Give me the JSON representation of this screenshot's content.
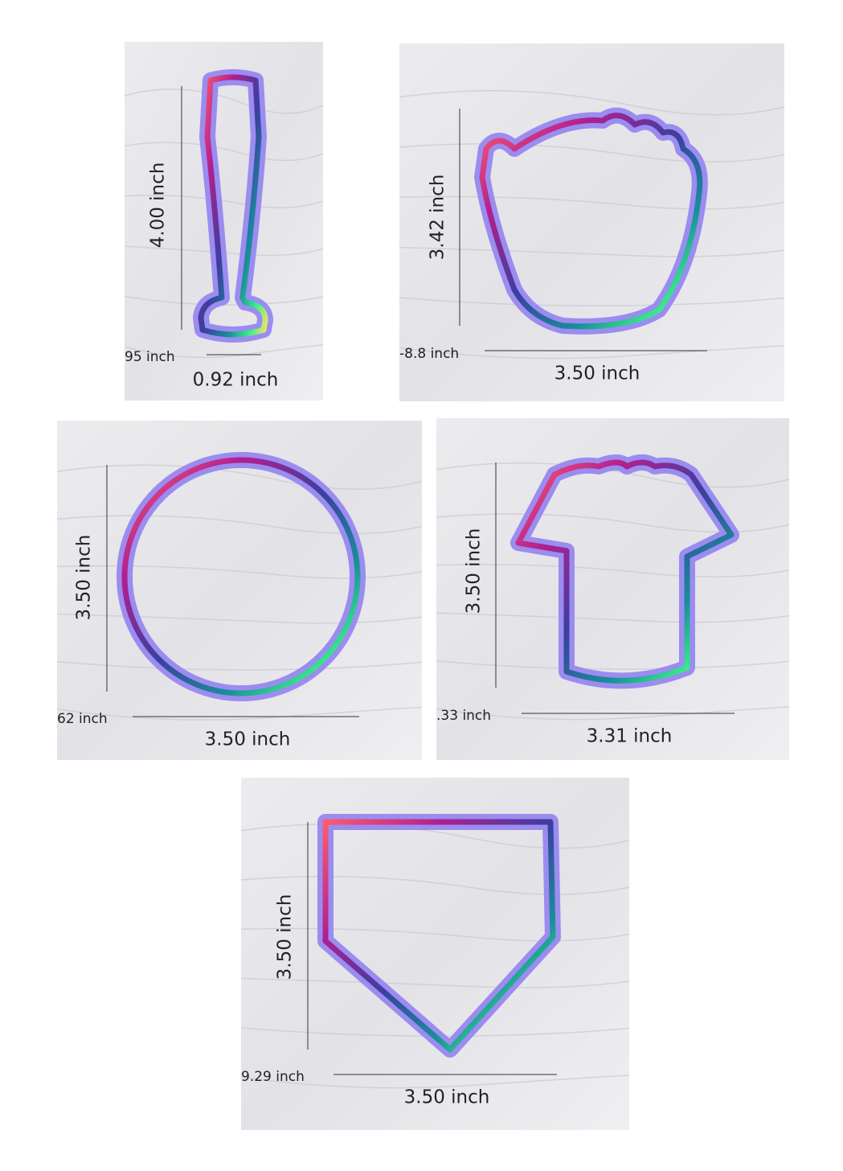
{
  "panels": [
    {
      "height_label": "4.00 inch",
      "width_label": "0.92 inch",
      "depth_label": "95 inch"
    },
    {
      "height_label": "3.42 inch",
      "width_label": "3.50 inch",
      "depth_label": "-8.8 inch"
    },
    {
      "height_label": "3.50 inch",
      "width_label": "3.50 inch",
      "depth_label": "62 inch"
    },
    {
      "height_label": "3.50 inch",
      "width_label": "3.31 inch",
      "depth_label": ".33 inch"
    },
    {
      "height_label": "3.50 inch",
      "width_label": "3.50 inch",
      "depth_label": "9.29 inch"
    }
  ]
}
